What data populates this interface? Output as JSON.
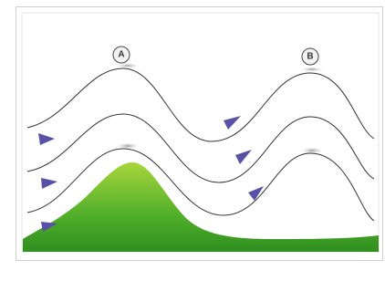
{
  "markers": [
    "A",
    "B"
  ]
}
